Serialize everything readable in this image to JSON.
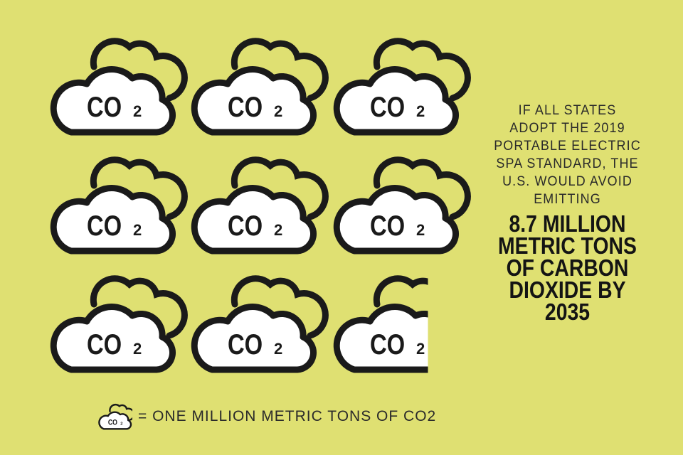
{
  "colors": {
    "background": "#dfe072",
    "cloud_fill": "#ffffff",
    "cloud_outline": "#1a1a1a"
  },
  "icon": {
    "name": "co2-cloud-icon",
    "label_main": "CO",
    "label_sub": "2"
  },
  "pictograph": {
    "clouds_shown": 8.7,
    "columns": 3,
    "unit": "one million metric tons of CO2"
  },
  "statement": {
    "lines": [
      "IF ALL STATES",
      "ADOPT THE 2019",
      "PORTABLE ELECTRIC",
      "SPA STANDARD, THE",
      "U.S. WOULD AVOID",
      "EMITTING"
    ],
    "highlight_lines": [
      "8.7 MILLION",
      "METRIC TONS",
      "OF CARBON",
      "DIOXIDE BY",
      "2035"
    ]
  },
  "legend": {
    "text": "= ONE MILLION METRIC TONS OF CO2"
  }
}
